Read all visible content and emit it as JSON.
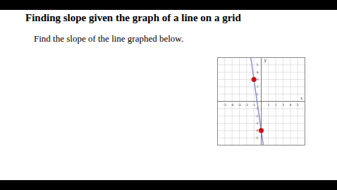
{
  "chart_data": {
    "type": "line",
    "title": "Finding slope given the graph of a line on a grid",
    "subtitle": "Find the slope of the line graphed below.",
    "x_label": "x",
    "y_label": "y",
    "x": [
      -1.43,
      -1,
      0,
      0.29
    ],
    "values": [
      6,
      3,
      -4,
      -6
    ],
    "color": "#7b7fd4",
    "points": {
      "x": [
        -1,
        0
      ],
      "y": [
        3,
        -4
      ],
      "color": "#cc1111"
    },
    "xlim": [
      -6,
      6
    ],
    "ylim": [
      -6,
      6
    ],
    "xticks": [
      -5,
      -4,
      -3,
      -2,
      -1,
      1,
      2,
      3,
      4,
      5
    ],
    "yticks": [
      -5,
      -4,
      -3,
      -2,
      -1,
      1,
      2,
      3,
      4,
      5
    ],
    "grid": true
  }
}
